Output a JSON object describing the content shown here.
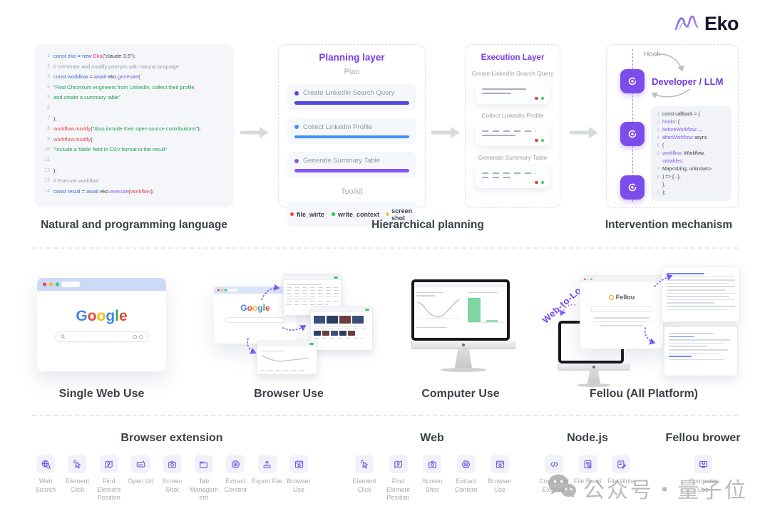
{
  "brand": {
    "name": "Eko"
  },
  "top_row": {
    "code_panel": {
      "lines": [
        {
          "n": "1",
          "s": [
            [
              "const eko",
              "b"
            ],
            [
              " = ",
              "d"
            ],
            [
              "new ",
              "b"
            ],
            [
              "Eko",
              "r"
            ],
            [
              "(\"claude-3.5\");",
              "d"
            ]
          ]
        },
        {
          "n": "2",
          "s": [
            [
              "// Generate and modify prompts with natural language",
              "g"
            ]
          ]
        },
        {
          "n": "3",
          "s": [
            [
              "const workflow",
              "b"
            ],
            [
              " = ",
              "d"
            ],
            [
              "await ",
              "b"
            ],
            [
              "eko.",
              "d"
            ],
            [
              "generate",
              "p"
            ],
            [
              "(",
              "d"
            ]
          ]
        },
        {
          "n": "4",
          "s": [
            [
              "  \"Find Chromium engineers from LinkedIn, collect their profile,",
              "gr"
            ]
          ]
        },
        {
          "n": "5",
          "s": [
            [
              "and create a summary table\"",
              "gr"
            ]
          ]
        },
        {
          "n": "6",
          "s": []
        },
        {
          "n": "7",
          "s": [
            [
              ");",
              "d"
            ]
          ]
        },
        {
          "n": "8",
          "s": [
            [
              "workflow",
              "r"
            ],
            [
              ".",
              "d"
            ],
            [
              "modify",
              "r"
            ],
            [
              "(",
              "d"
            ],
            [
              "\"Also include their open source contributions\"",
              "gr"
            ],
            [
              ");",
              "d"
            ]
          ]
        },
        {
          "n": "9",
          "s": [
            [
              "workflow",
              "r"
            ],
            [
              ".",
              "d"
            ],
            [
              "modify",
              "r"
            ],
            [
              "(",
              "d"
            ]
          ]
        },
        {
          "n": "10",
          "s": [
            [
              "  \"Include a 'table' field in CSV format in the result\"",
              "gr"
            ]
          ]
        },
        {
          "n": "11",
          "s": []
        },
        {
          "n": "12",
          "s": [
            [
              ");",
              "d"
            ]
          ]
        },
        {
          "n": "13",
          "s": [
            [
              "// Execute workflow",
              "g"
            ]
          ]
        },
        {
          "n": "14",
          "s": [
            [
              "const result",
              "b"
            ],
            [
              " = ",
              "d"
            ],
            [
              "await ",
              "b"
            ],
            [
              "eko.",
              "d"
            ],
            [
              "execute",
              "p"
            ],
            [
              "(",
              "d"
            ],
            [
              "workflow",
              "r"
            ],
            [
              ");",
              "d"
            ]
          ]
        }
      ]
    },
    "planning": {
      "title": "Planning layer",
      "plan_label": "Plan",
      "tasks": [
        {
          "label": "Create LinkedIn Search Query",
          "color": "#4f46e5"
        },
        {
          "label": "Collect LinkedIn Profile",
          "color": "#4292f7"
        },
        {
          "label": "Generate Summary Table",
          "color": "#8456f0"
        }
      ],
      "toolkit_label": "Toolkit",
      "toolkit": [
        {
          "label": "file_wirte",
          "dot": "#ef4444"
        },
        {
          "label": "write_context",
          "dot": "#22c55e"
        },
        {
          "label": "screen shot",
          "dot": "#eab308"
        }
      ]
    },
    "execution": {
      "title": "Execution Layer",
      "steps": [
        "Create LinkedIn Search Query",
        "Collect LinkedIn Profile",
        "Generate Summary Table"
      ]
    },
    "intervention": {
      "hook_label": "Hook",
      "title": "Developer / LLM",
      "code_lines": [
        {
          "n": "1",
          "s": [
            [
              "const callback = {",
              "d"
            ]
          ]
        },
        {
          "n": "2",
          "s": [
            [
              "  ",
              "d"
            ],
            [
              "hooks",
              "p"
            ],
            [
              ": {",
              "d"
            ]
          ]
        },
        {
          "n": "3",
          "s": [
            [
              "    ",
              "d"
            ],
            [
              "beforeWorkflow",
              "p"
            ],
            [
              ": ...",
              "d"
            ]
          ]
        },
        {
          "n": "4",
          "s": [
            [
              "    ",
              "d"
            ],
            [
              "afterWorkflow",
              "p"
            ],
            [
              ": async",
              "d"
            ]
          ]
        },
        {
          "n": "5",
          "s": [
            [
              "(",
              "d"
            ]
          ]
        },
        {
          "n": "6",
          "s": [
            [
              "    ",
              "d"
            ],
            [
              "workflow",
              "p"
            ],
            [
              ": Workflow,",
              "d"
            ]
          ]
        },
        {
          "n": "",
          "s": [
            [
              "    ",
              "d"
            ],
            [
              "variables",
              "p"
            ],
            [
              ":",
              "d"
            ]
          ]
        },
        {
          "n": "7",
          "s": [
            [
              "Map<string, unknown>",
              "d"
            ]
          ]
        },
        {
          "n": "8",
          "s": [
            [
              "  ) => {...},",
              "d"
            ]
          ]
        },
        {
          "n": "",
          "s": [
            [
              "  },",
              "d"
            ]
          ]
        },
        {
          "n": "9",
          "s": [
            [
              "};",
              "d"
            ]
          ]
        }
      ]
    }
  },
  "captions": [
    "Natural and programming language",
    "Hierarchical planning",
    "Intervention mechanism"
  ],
  "middle_row": {
    "google_text": "Google",
    "google_colors": [
      "#4285F4",
      "#EA4335",
      "#FBBC05",
      "#4285F4",
      "#34A853",
      "#EA4335"
    ],
    "fellou_logo": "Fellou",
    "web_to_local": "Web-to-Local",
    "labels": [
      "Single Web Use",
      "Browser Use",
      "Computer Use",
      "Fellou (All Platform)"
    ]
  },
  "tool_sections": [
    {
      "title": "Browser extension",
      "tools": [
        {
          "icon": "web-search",
          "label": "Web Search"
        },
        {
          "icon": "element-click",
          "label": "Element Click"
        },
        {
          "icon": "find-element-position",
          "label": "Find Element Position"
        },
        {
          "icon": "open-url",
          "label": "Open Url"
        },
        {
          "icon": "screen-shot",
          "label": "Screen Shot"
        },
        {
          "icon": "tab-management",
          "label": "Tab Management"
        },
        {
          "icon": "extract-content",
          "label": "Extract Content"
        },
        {
          "icon": "export-file",
          "label": "Export File"
        },
        {
          "icon": "browser-use",
          "label": "Browser Use"
        }
      ]
    },
    {
      "title": "Web",
      "tools": [
        {
          "icon": "element-click",
          "label": "Element Click"
        },
        {
          "icon": "find-element-position",
          "label": "Find Element Position"
        },
        {
          "icon": "screen-shot",
          "label": "Screen Shot"
        },
        {
          "icon": "extract-content",
          "label": "Extract Content"
        },
        {
          "icon": "browser-use",
          "label": "Browser Use"
        }
      ]
    },
    {
      "title": "Node.js",
      "tools": [
        {
          "icon": "command-execute",
          "label": "Command Execute"
        },
        {
          "icon": "file-read",
          "label": "File Read"
        },
        {
          "icon": "file-write",
          "label": "File Write"
        }
      ]
    },
    {
      "title": "Fellou brower",
      "tools": [
        {
          "icon": "computer-use",
          "label": "Computer Use"
        }
      ]
    }
  ],
  "watermark": {
    "text": "公众号・量子位"
  }
}
